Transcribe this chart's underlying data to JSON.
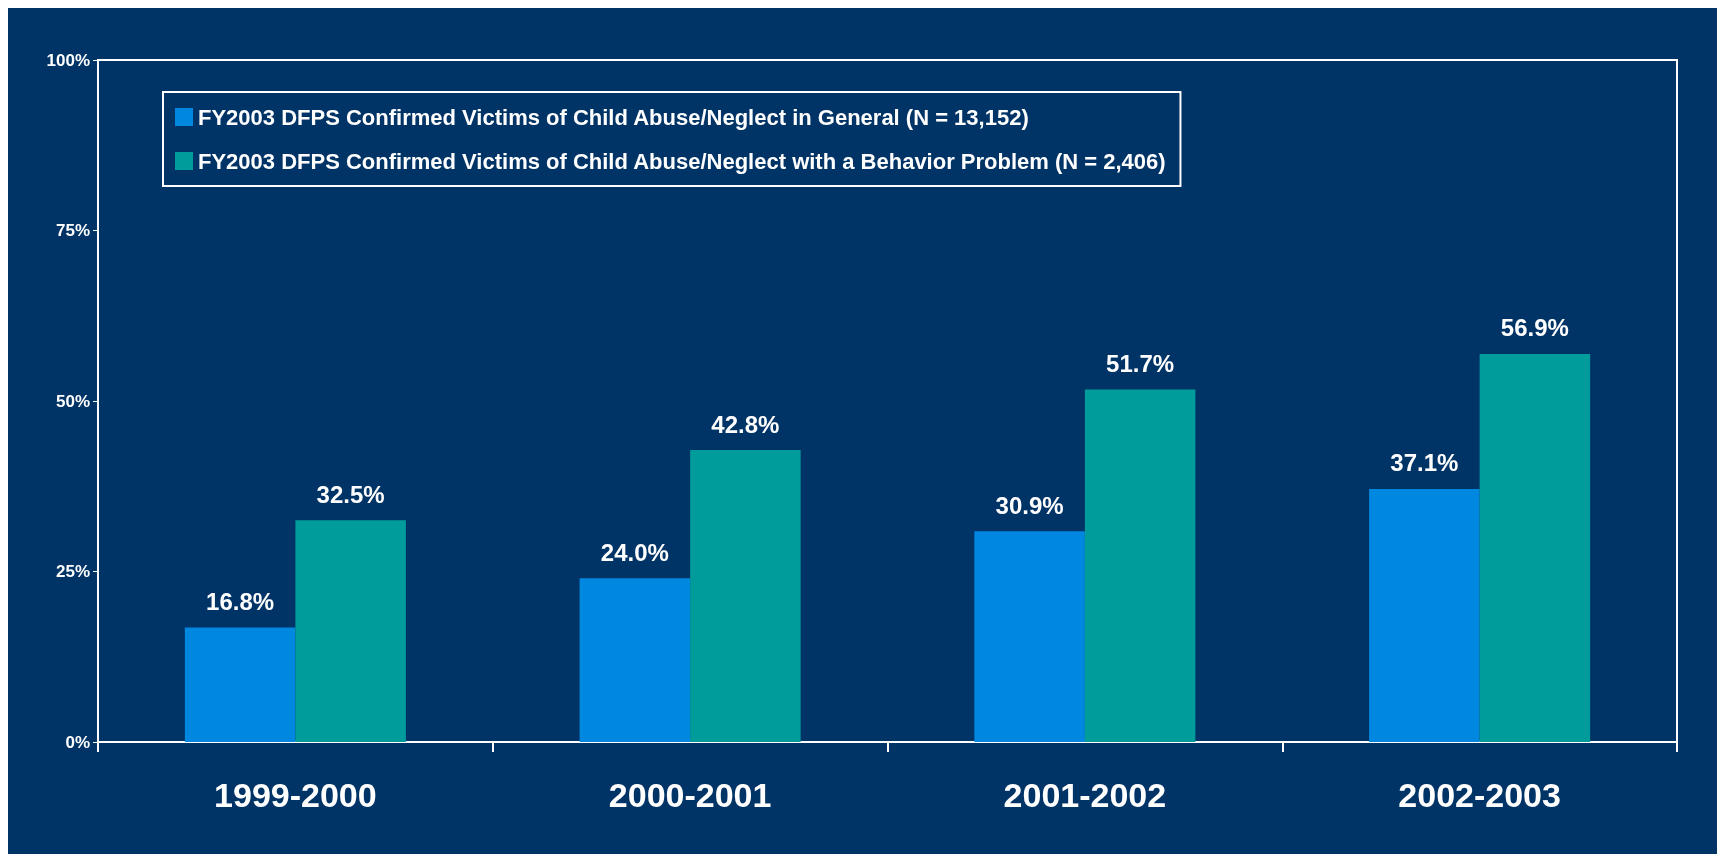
{
  "chart_data": {
    "type": "bar",
    "categories": [
      "1999-2000",
      "2000-2001",
      "2001-2002",
      "2002-2003"
    ],
    "series": [
      {
        "name": "FY2003 DFPS Confirmed Victims of Child Abuse/Neglect in General (N = 13,152)",
        "color": "#0088e0",
        "values": [
          16.8,
          24.0,
          30.9,
          37.1
        ],
        "value_labels": [
          "16.8%",
          "24.0%",
          "30.9%",
          "37.1%"
        ]
      },
      {
        "name": "FY2003 DFPS Confirmed Victims of Child Abuse/Neglect with a Behavior Problem (N = 2,406)",
        "color": "#009b9b",
        "values": [
          32.5,
          42.8,
          51.7,
          56.9
        ],
        "value_labels": [
          "32.5%",
          "42.8%",
          "51.7%",
          "56.9%"
        ]
      }
    ],
    "ylim": [
      0,
      100
    ],
    "yticks": [
      {
        "value": 0,
        "label": "0%"
      },
      {
        "value": 25,
        "label": "25%"
      },
      {
        "value": 50,
        "label": "50%"
      },
      {
        "value": 75,
        "label": "75%"
      },
      {
        "value": 100,
        "label": "100%"
      }
    ],
    "grid": false,
    "legend": "top left"
  }
}
